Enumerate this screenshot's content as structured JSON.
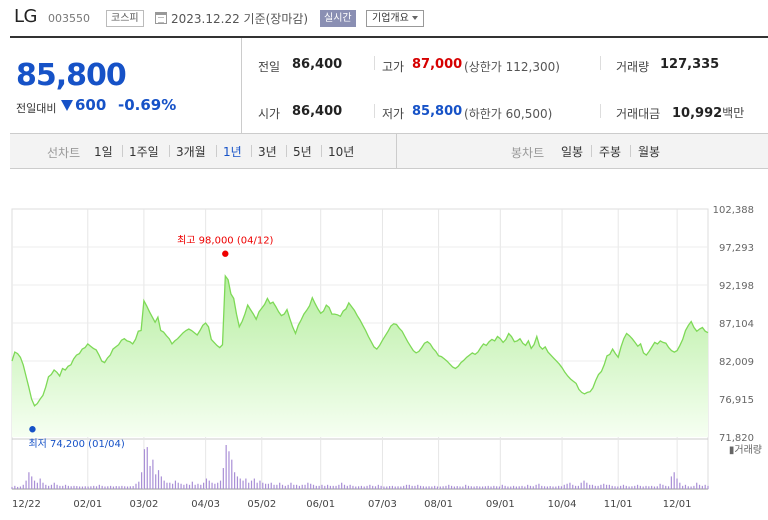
{
  "header": {
    "name": "LG",
    "code": "003550",
    "market": "코스피",
    "date": "2023.12.22",
    "basis": "기준(장마감)",
    "realtime": "실시간",
    "company_info": "기업개요"
  },
  "price": {
    "current": "85,800",
    "diff_label": "전일대비",
    "diff": "600",
    "diff_pct": "-0.69%"
  },
  "stats": {
    "prev_label": "전일",
    "prev": "86,400",
    "high_label": "고가",
    "high": "87,000",
    "upper_limit_label": "상한가",
    "upper_limit": "112,300",
    "volume_label": "거래량",
    "volume": "127,335",
    "open_label": "시가",
    "open": "86,400",
    "low_label": "저가",
    "low": "85,800",
    "lower_limit_label": "하한가",
    "lower_limit": "60,500",
    "amount_label": "거래대금",
    "amount": "10,992",
    "amount_unit": "백만"
  },
  "tabs": {
    "line_title": "선차트",
    "line": [
      "1일",
      "1주일",
      "3개월",
      "1년",
      "3년",
      "5년",
      "10년"
    ],
    "active": "1년",
    "candle_title": "봉차트",
    "candle": [
      "일봉",
      "주봉",
      "월봉"
    ]
  },
  "colors": {
    "accent_blue": "#1652c7",
    "up_red": "#d60000",
    "line_green": "#7ed957",
    "volume_purple": "#a98fd6"
  },
  "chart_data": {
    "type": "area",
    "y_ticks": [
      "102,388",
      "97,293",
      "92,198",
      "87,104",
      "82,009",
      "76,915",
      "71,820"
    ],
    "ylim": [
      71820,
      102388
    ],
    "x_ticks": [
      "12/22",
      "02/01",
      "03/02",
      "04/03",
      "05/02",
      "06/01",
      "07/03",
      "08/01",
      "09/01",
      "10/04",
      "11/01",
      "12/01"
    ],
    "x_tick_index": [
      0,
      27,
      47,
      69,
      89,
      110,
      132,
      152,
      174,
      196,
      216,
      237
    ],
    "max_label": "최고 98,000 (04/12)",
    "min_label": "최저 74,200 (01/04)",
    "max_value": 98000,
    "min_value": 74200,
    "max_index": 76,
    "min_index": 8,
    "volume_label": "거래량",
    "series": [
      {
        "values": [
          82000,
          83200,
          83000,
          82500,
          81500,
          80000,
          78500,
          76900,
          76000,
          76300,
          76900,
          77400,
          78500,
          79900,
          80200,
          80800,
          80500,
          80000,
          81000,
          80800,
          81300,
          81500,
          82300,
          82800,
          83000,
          83600,
          83800,
          84300,
          84000,
          83700,
          83500,
          82800,
          82000,
          81800,
          82400,
          82800,
          83600,
          83900,
          84200,
          84800,
          85000,
          84700,
          84600,
          84300,
          84900,
          86000,
          86100,
          90100,
          89400,
          88600,
          87900,
          87200,
          87900,
          86100,
          85900,
          85400,
          85000,
          84300,
          84700,
          85000,
          85400,
          85800,
          86100,
          86300,
          86100,
          85800,
          85500,
          86100,
          86800,
          87100,
          86600,
          84900,
          84500,
          84100,
          83800,
          84200,
          93400,
          92900,
          91000,
          90400,
          88300,
          86600,
          87300,
          88300,
          89500,
          88900,
          88300,
          87600,
          88600,
          89100,
          89600,
          90400,
          89700,
          89900,
          89300,
          88600,
          88100,
          88300,
          88900,
          87700,
          86600,
          85700,
          86800,
          87500,
          88300,
          88800,
          89400,
          90500,
          89700,
          89000,
          88400,
          88700,
          89500,
          89200,
          88300,
          88300,
          88200,
          88000,
          88700,
          89000,
          89800,
          89300,
          88800,
          88100,
          87500,
          86800,
          86100,
          85300,
          84600,
          83900,
          83600,
          84100,
          84800,
          85400,
          86000,
          86700,
          87000,
          86900,
          86400,
          86000,
          85300,
          84600,
          84000,
          83400,
          83100,
          83300,
          83800,
          84400,
          84600,
          84300,
          83700,
          83300,
          82700,
          82600,
          82300,
          82000,
          81600,
          81200,
          81000,
          81300,
          81800,
          82100,
          82500,
          82800,
          83100,
          82900,
          83200,
          83800,
          84300,
          84100,
          84600,
          84900,
          84700,
          85300,
          85000,
          84500,
          84900,
          85700,
          85300,
          84600,
          84700,
          85000,
          84400,
          84100,
          84700,
          83700,
          84200,
          85300,
          84000,
          83600,
          83900,
          83200,
          82800,
          82400,
          82000,
          81600,
          81100,
          80500,
          80000,
          79600,
          79300,
          79000,
          78200,
          77800,
          77600,
          77800,
          77900,
          78400,
          79400,
          80200,
          80600,
          81500,
          82700,
          82900,
          83600,
          83000,
          82500,
          83900,
          85000,
          85700,
          85400,
          85000,
          84500,
          84000,
          84300,
          83100,
          82800,
          83300,
          83900,
          84500,
          84300,
          84700,
          84500,
          84400,
          83800,
          83400,
          83200,
          83400,
          84100,
          84900,
          86100,
          86800,
          87300,
          86500,
          86000,
          86300,
          86500,
          86000,
          85800
        ]
      }
    ],
    "volume": [
      1,
      1.5,
      1,
      1.2,
      2,
      4,
      8,
      6,
      4,
      3,
      5,
      3,
      2,
      1.5,
      2,
      3,
      2,
      1.5,
      1.5,
      2,
      1.5,
      1.3,
      1.5,
      1.4,
      1.2,
      1.2,
      1.3,
      1.2,
      1.3,
      1.5,
      1.3,
      2,
      1.5,
      1.2,
      1.3,
      1.5,
      1.2,
      1.4,
      1.3,
      1.5,
      1.3,
      1.2,
      1.3,
      1.4,
      2.5,
      3.5,
      8,
      19,
      20,
      11,
      14,
      7,
      9,
      6,
      4,
      3,
      3,
      2.5,
      4,
      3,
      2.5,
      2,
      2.5,
      2,
      3.5,
      2,
      2.5,
      2,
      3,
      5,
      4,
      3,
      2.5,
      3,
      4,
      10,
      21,
      18,
      14,
      8,
      6,
      5,
      4,
      5,
      3,
      4,
      5,
      3,
      4,
      3,
      2.5,
      2.5,
      3,
      2,
      2,
      3,
      2,
      1.5,
      2,
      3,
      2,
      2,
      1.5,
      2,
      2,
      3,
      2.5,
      2,
      1.5,
      1.5,
      2,
      1.5,
      2,
      1.5,
      1.5,
      1.5,
      2,
      3,
      2,
      1.5,
      2,
      1.5,
      1.2,
      1.3,
      1.5,
      1.2,
      1.5,
      2,
      1.5,
      1.3,
      2,
      1.5,
      1.2,
      1.2,
      1.4,
      1.5,
      1.2,
      1.3,
      1.2,
      1.5,
      2,
      2,
      1.5,
      1.5,
      2,
      1.5,
      1.3,
      1.2,
      1.3,
      1.2,
      1.5,
      1.2,
      1.2,
      1.3,
      1.5,
      2,
      1.5,
      1.2,
      1.4,
      1.2,
      1.2,
      2,
      1.5,
      1.3,
      1.2,
      1.4,
      1.2,
      1.2,
      1.3,
      1.5,
      1.2,
      1.5,
      1.3,
      1.2,
      2,
      1.5,
      1.2,
      1.2,
      1.5,
      1.2,
      1.3,
      1.5,
      1.2,
      2,
      1.5,
      1.3,
      2,
      2.5,
      1.5,
      1.3,
      1.2,
      1.4,
      1.2,
      1.2,
      1.5,
      1.3,
      2,
      2.5,
      3,
      2,
      1.5,
      1.5,
      3,
      4,
      3,
      2,
      2,
      1.5,
      1.5,
      2,
      2.5,
      2,
      2,
      1.5,
      1.3,
      1.2,
      1.5,
      2,
      1.5,
      1.2,
      1.3,
      1.5,
      2,
      1.5,
      1.2,
      1.5,
      1.3,
      1.5,
      1.2,
      1.3,
      2.5,
      2,
      1.5,
      1.3,
      6,
      8,
      5,
      3,
      1.5,
      2,
      1.3,
      1.2,
      1.5,
      3,
      2,
      1.5,
      2,
      1.5
    ]
  }
}
